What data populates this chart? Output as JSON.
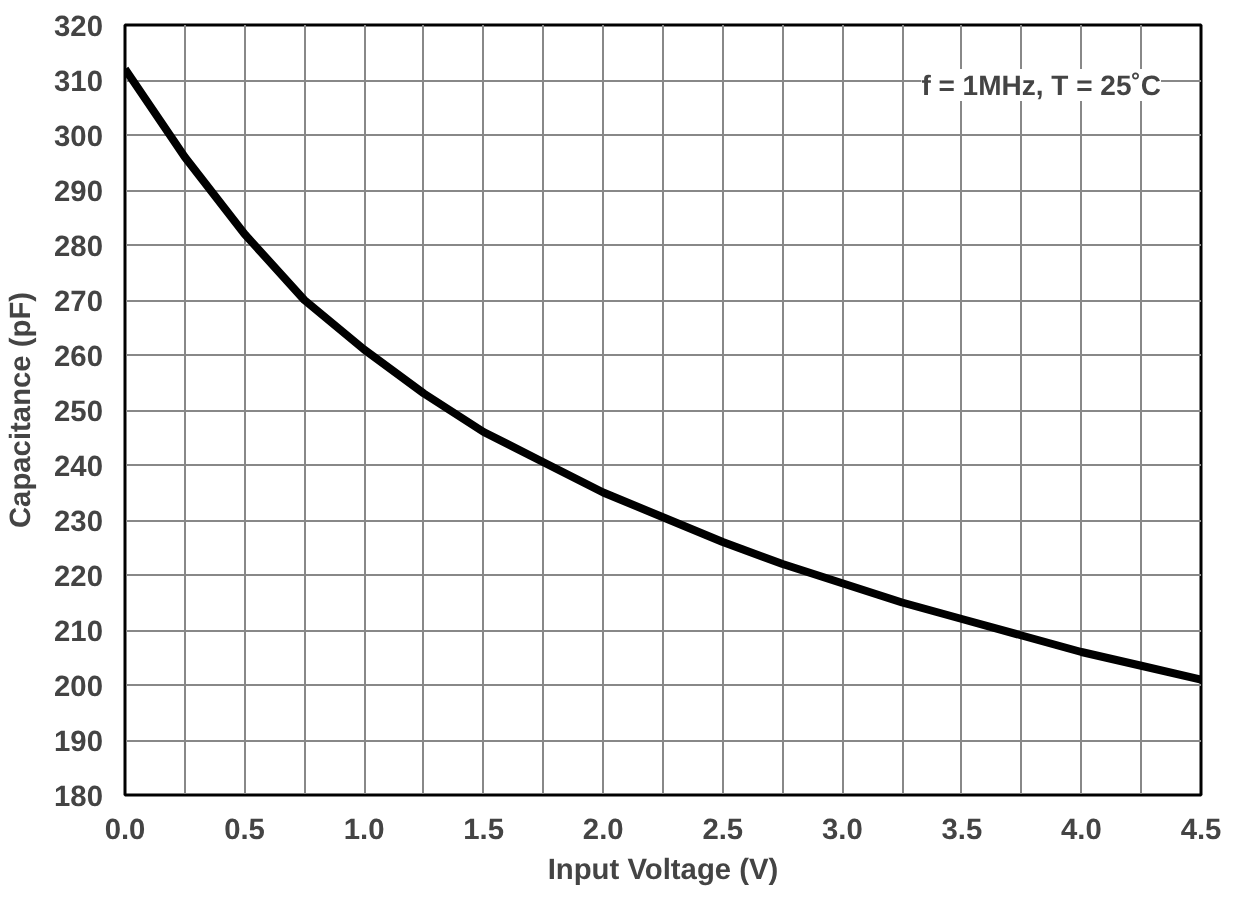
{
  "chart_data": {
    "type": "line",
    "xlabel": "Input Voltage (V)",
    "ylabel": "Capacitance (pF)",
    "annotations": [
      "f = 1MHz, T = 25˚C"
    ],
    "x": [
      0,
      0.25,
      0.5,
      0.75,
      1.0,
      1.25,
      1.5,
      1.75,
      2.0,
      2.25,
      2.5,
      2.75,
      3.0,
      3.25,
      3.5,
      3.75,
      4.0,
      4.25,
      4.5
    ],
    "series": [
      {
        "color": "#000000",
        "values": [
          312,
          296,
          282,
          270,
          261,
          253,
          246,
          240.5,
          235,
          230.5,
          226,
          222,
          218.5,
          215,
          212,
          209,
          206,
          203.5,
          201
        ]
      }
    ],
    "xlim": [
      0,
      4.5
    ],
    "ylim": [
      180,
      320
    ],
    "xticks": [
      {
        "value": 0,
        "label": "0.0"
      },
      {
        "value": 0.25,
        "label": null
      },
      {
        "value": 0.5,
        "label": "0.5"
      },
      {
        "value": 0.75,
        "label": null
      },
      {
        "value": 1.0,
        "label": "1.0"
      },
      {
        "value": 1.25,
        "label": null
      },
      {
        "value": 1.5,
        "label": "1.5"
      },
      {
        "value": 1.75,
        "label": null
      },
      {
        "value": 2.0,
        "label": "2.0"
      },
      {
        "value": 2.25,
        "label": null
      },
      {
        "value": 2.5,
        "label": "2.5"
      },
      {
        "value": 2.75,
        "label": null
      },
      {
        "value": 3.0,
        "label": "3.0"
      },
      {
        "value": 3.25,
        "label": null
      },
      {
        "value": 3.5,
        "label": "3.5"
      },
      {
        "value": 3.75,
        "label": null
      },
      {
        "value": 4.0,
        "label": "4.0"
      },
      {
        "value": 4.25,
        "label": null
      },
      {
        "value": 4.5,
        "label": "4.5"
      }
    ],
    "yticks": [
      180,
      190,
      200,
      210,
      220,
      230,
      240,
      250,
      260,
      270,
      280,
      290,
      300,
      310,
      320
    ],
    "grid": true,
    "marker": "none",
    "line_style": "solid"
  }
}
